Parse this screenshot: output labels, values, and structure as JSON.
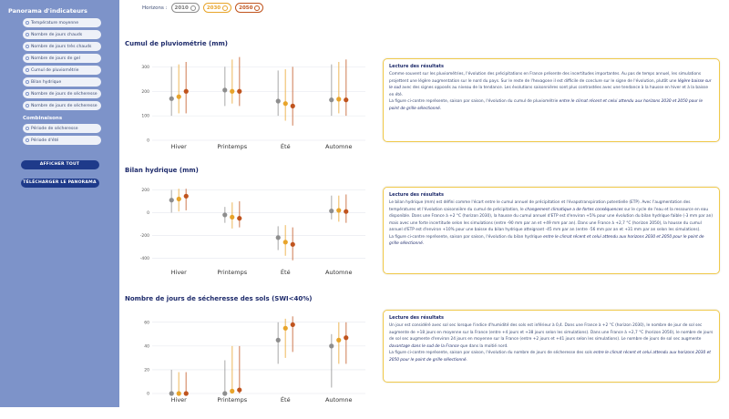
{
  "sidebar": {
    "title": "Panorama d'indicateurs",
    "items": [
      {
        "label": "Température moyenne"
      },
      {
        "label": "Nombre de jours chauds"
      },
      {
        "label": "Nombre de jours très chauds"
      },
      {
        "label": "Nombre de jours de gel"
      },
      {
        "label": "Cumul de pluviométrie"
      },
      {
        "label": "Bilan hydrique"
      },
      {
        "label": "Nombre de jours de sécheresse"
      },
      {
        "label": "Nombre de jours de sécheresse"
      }
    ],
    "section2_title": "Combinaisons",
    "items2": [
      {
        "label": "Période de sécheresse"
      },
      {
        "label": "Période d'été"
      }
    ],
    "show_all": "AFFICHER TOUT",
    "download": "TÉLÉCHARGER LE PANORAMA"
  },
  "horizons": {
    "label": "Horizons :",
    "h2010": "2010",
    "h2030": "2030",
    "h2050": "2050",
    "colors": {
      "h2010": "#8e8e8e",
      "h2030": "#e8a42a",
      "h2050": "#c0541e"
    }
  },
  "sections": [
    {
      "title": "Cumul de pluviométrie (mm)",
      "card_title": "Lecture des résultats",
      "text1": "Comme souvent sur les pluviométries, l'évolution des précipitations en France présente des incertitudes importantes. Au pas de temps annuel, les simulations projettent une légère augmentation sur le nord du pays. Sur le reste de l'hexagone il est difficile de conclure sur le signe de l'évolution, plutôt une",
      "highlight1": "légère baisse sur le sud",
      "text2": "avec des signes opposés au niveau de la tendance. Les évolutions saisonnières sont plus contrastées avec une tendance à la hausse en hiver et à la baisse en été.",
      "text3": "La figure ci-contre représente, saison par saison, l'évolution du cumul de pluviométrie",
      "highlight2": "entre le climat récent et celui attendu aux horizons 2030 et 2050 pour le point de grille sélectionné."
    },
    {
      "title": "Bilan hydrique (mm)",
      "card_title": "Lecture des résultats",
      "text1": "Le bilan hydrique (mm) est défini comme l'écart entre le cumul annuel de précipitation et l'évapotranspiration potentielle (ETP). Avec l'augmentation des températures et l'évolution saisonnière du cumul de précipitation, le",
      "highlight1": "changement climatique a de fortes conséquences",
      "text2": "sur le cycle de l'eau et la ressource en eau disponible. Dans une France à +2 °C (horizon 2030), la hausse du cumul annuel d'ETP est d'environ +5% pour une évolution du bilan hydrique faible (-3 mm par an) mais avec une forte incertitude selon les simulations (entre -90 mm par an et +49 mm par an). Dans une France à +2,7 °C (horizon 2050), la hausse du cumul annuel d'ETP est d'environ +10% pour une baisse du bilan hydrique atteignant -45 mm par an (entre -56 mm par an et +31 mm par an selon les simulations).",
      "text3": "La figure ci-contre représente, saison par saison, l'évolution du bilan hydrique",
      "highlight2": "entre le climat récent et celui attendu aux horizons 2030 et 2050 pour le point de grille sélectionné."
    },
    {
      "title": "Nombre de jours de sécheresse des sols (SWI<40%)",
      "card_title": "Lecture des résultats",
      "text1": "Un jour est considéré avec sol sec lorsque l'indice d'humidité des sols est inférieur à 0,4. Dans une France à +2 °C (horizon 2030), le nombre de jour de sol sec augmente de +18 jours en moyenne sur la France (entre +4 jours et +38 jours selon les simulations). Dans une France à +2,7 °C (horizon 2050), le nombre de jours de sol sec augmente d'environ 24 jours en moyenne sur la France (entre +2 jours et +41 jours selon les simulations). Le nombre de jours de sol sec augmente",
      "highlight1": "davantage dans le sud de la France",
      "text2": "que dans la moitié nord.",
      "text3": "La figure ci-contre représente, saison par saison, l'évolution du nombre de jours de sécheresse des sols",
      "highlight2": "entre le climat récent et celui attendu aux horizons 2030 et 2050 pour le point de grille sélectionné."
    }
  ],
  "chart_data": [
    {
      "type": "scatter",
      "title": "Cumul de pluviométrie (mm)",
      "categories": [
        "Hiver",
        "Printemps",
        "Été",
        "Automne"
      ],
      "yticks": [
        0,
        100,
        200,
        300
      ],
      "ylim": [
        0,
        320
      ],
      "series": [
        {
          "name": "2010",
          "values": [
            170,
            205,
            160,
            165
          ],
          "low": [
            100,
            140,
            100,
            100
          ],
          "high": [
            300,
            300,
            285,
            310
          ]
        },
        {
          "name": "2030",
          "values": [
            178,
            200,
            150,
            168
          ],
          "low": [
            110,
            150,
            80,
            110
          ],
          "high": [
            310,
            330,
            290,
            320
          ]
        },
        {
          "name": "2050",
          "values": [
            200,
            200,
            140,
            165
          ],
          "low": [
            110,
            140,
            60,
            100
          ],
          "high": [
            320,
            340,
            300,
            330
          ]
        }
      ]
    },
    {
      "type": "scatter",
      "title": "Bilan hydrique (mm)",
      "categories": [
        "Hiver",
        "Printemps",
        "Été",
        "Automne"
      ],
      "yticks": [
        -400,
        -200,
        0,
        200
      ],
      "ylim": [
        -470,
        220
      ],
      "series": [
        {
          "name": "2010",
          "values": [
            110,
            -20,
            -220,
            15
          ],
          "low": [
            0,
            -90,
            -330,
            -60
          ],
          "high": [
            200,
            50,
            -120,
            150
          ]
        },
        {
          "name": "2030",
          "values": [
            120,
            -40,
            -260,
            20
          ],
          "low": [
            10,
            -140,
            -380,
            -80
          ],
          "high": [
            210,
            90,
            -110,
            150
          ]
        },
        {
          "name": "2050",
          "values": [
            145,
            -50,
            -280,
            10
          ],
          "low": [
            20,
            -130,
            -420,
            -90
          ],
          "high": [
            210,
            100,
            -130,
            160
          ]
        }
      ]
    },
    {
      "type": "scatter",
      "title": "Nombre de jours de sécheresse des sols (SWI<40%)",
      "categories": [
        "Hiver",
        "Printemps",
        "Été",
        "Automne"
      ],
      "yticks": [
        0,
        20,
        40,
        60
      ],
      "ylim": [
        0,
        66
      ],
      "series": [
        {
          "name": "2010",
          "values": [
            0,
            0,
            45,
            40
          ],
          "low": [
            0,
            0,
            25,
            5
          ],
          "high": [
            20,
            28,
            60,
            50
          ]
        },
        {
          "name": "2030",
          "values": [
            0,
            2,
            55,
            45
          ],
          "low": [
            0,
            0,
            30,
            25
          ],
          "high": [
            18,
            40,
            63,
            60
          ]
        },
        {
          "name": "2050",
          "values": [
            0,
            3,
            58,
            47
          ],
          "low": [
            0,
            0,
            35,
            25
          ],
          "high": [
            18,
            40,
            65,
            60
          ]
        }
      ]
    }
  ]
}
